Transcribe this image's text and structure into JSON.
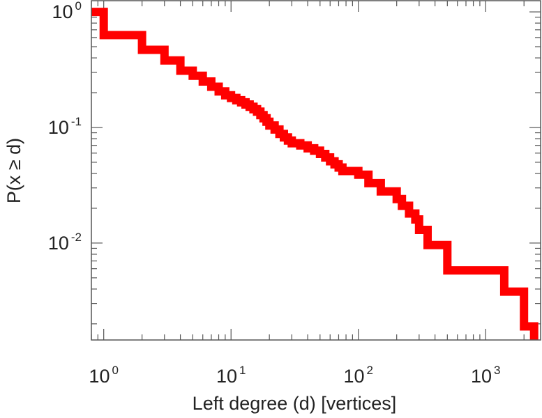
{
  "chart_data": {
    "type": "line",
    "title": "",
    "xlabel": "Left degree (d) [vertices]",
    "ylabel": "P(x ≥ d)",
    "x_scale": "log",
    "y_scale": "log",
    "xlim": [
      0.8,
      2700
    ],
    "ylim": [
      0.00145,
      1.25
    ],
    "grid": false,
    "legend": "none",
    "x_ticks": [
      {
        "value": 1,
        "base": "10",
        "exp": "0"
      },
      {
        "value": 10,
        "base": "10",
        "exp": "1"
      },
      {
        "value": 100,
        "base": "10",
        "exp": "2"
      },
      {
        "value": 1000,
        "base": "10",
        "exp": "3"
      }
    ],
    "y_ticks": [
      {
        "value": 1,
        "base": "10",
        "exp": "0"
      },
      {
        "value": 0.1,
        "base": "10",
        "exp": "-1"
      },
      {
        "value": 0.01,
        "base": "10",
        "exp": "-2"
      }
    ],
    "series": [
      {
        "color": "#ff0000",
        "step": true,
        "x": [
          0.8,
          1,
          2,
          3,
          4,
          5,
          6,
          7,
          8,
          9,
          10,
          11,
          12,
          13,
          14,
          15,
          16,
          17,
          18,
          19,
          20,
          22,
          24,
          26,
          28,
          30,
          35,
          40,
          45,
          50,
          55,
          60,
          65,
          70,
          75,
          100,
          120,
          150,
          200,
          220,
          250,
          280,
          300,
          350,
          500,
          1400,
          2000,
          2400
        ],
        "y": [
          1.0,
          0.63,
          0.47,
          0.38,
          0.31,
          0.28,
          0.25,
          0.225,
          0.205,
          0.19,
          0.18,
          0.172,
          0.165,
          0.158,
          0.151,
          0.144,
          0.137,
          0.128,
          0.12,
          0.112,
          0.104,
          0.096,
          0.088,
          0.082,
          0.077,
          0.073,
          0.07,
          0.066,
          0.063,
          0.059,
          0.055,
          0.051,
          0.048,
          0.045,
          0.042,
          0.039,
          0.033,
          0.028,
          0.024,
          0.021,
          0.018,
          0.016,
          0.013,
          0.0096,
          0.0058,
          0.0038,
          0.0019,
          0.0019
        ]
      }
    ]
  }
}
